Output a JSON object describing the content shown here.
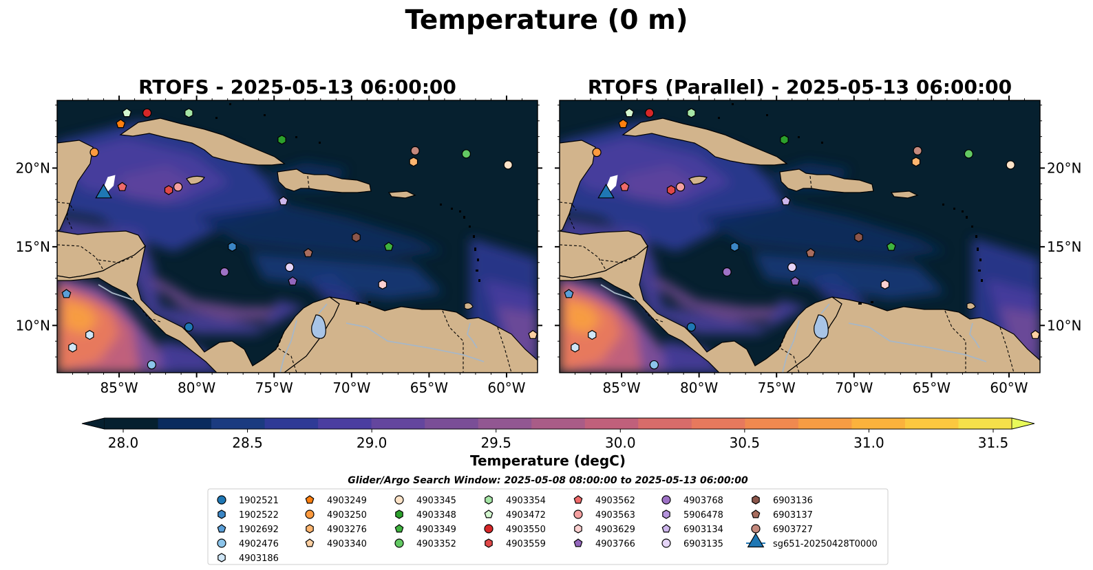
{
  "figure": {
    "title": "Temperature (0 m)",
    "panels": [
      {
        "title": "RTOFS - 2025-05-13 06:00:00"
      },
      {
        "title": "RTOFS (Parallel) - 2025-05-13 06:00:00"
      }
    ],
    "lon_ticks": [
      "85°W",
      "80°W",
      "75°W",
      "70°W",
      "65°W",
      "60°W"
    ],
    "lon_values": [
      -85,
      -80,
      -75,
      -70,
      -65,
      -60
    ],
    "lat_ticks": [
      "20°N",
      "15°N",
      "10°N"
    ],
    "lat_values": [
      20,
      15,
      10
    ],
    "extent": {
      "lon": [
        -89,
        -58
      ],
      "lat": [
        7,
        24.3
      ]
    },
    "colors": {
      "ocean_cold": "#06202f",
      "land": "#d2b48c",
      "lake": "#a8c4e6",
      "river": "#a7b7c7"
    }
  },
  "colorbar": {
    "label": "Temperature (degC)",
    "ticks": [
      "28.0",
      "28.5",
      "29.0",
      "29.5",
      "30.0",
      "30.5",
      "31.0",
      "31.5"
    ],
    "tick_values": [
      28.0,
      28.5,
      29.0,
      29.5,
      30.0,
      30.5,
      31.0,
      31.5
    ],
    "min": 28.0,
    "max": 31.5,
    "extend": "both",
    "colors": [
      "#06202f",
      "#0a2b5e",
      "#1b3b80",
      "#2f3a96",
      "#4b3ea0",
      "#64469e",
      "#7a4e97",
      "#925792",
      "#a95c87",
      "#c0607b",
      "#d76c6a",
      "#e7795d",
      "#f0894f",
      "#f79c43",
      "#fbb23c",
      "#fcc83f",
      "#f5e04a"
    ],
    "over_color": "#e8fa5a",
    "under_color": "#06202f"
  },
  "search_window": "Glider/Argo Search Window: 2025-05-08 08:00:00 to 2025-05-13 06:00:00",
  "legend": [
    {
      "label": "1902521",
      "marker": "circle",
      "color": "#1f77b4"
    },
    {
      "label": "1902522",
      "marker": "hexagon",
      "color": "#3b86c5"
    },
    {
      "label": "1902692",
      "marker": "pentagon",
      "color": "#5b9fd8"
    },
    {
      "label": "4902476",
      "marker": "circle",
      "color": "#8cc4ea"
    },
    {
      "label": "4903186",
      "marker": "hexagon",
      "color": "#cfe6f6"
    },
    {
      "label": "4903249",
      "marker": "pentagon",
      "color": "#ff7f0e"
    },
    {
      "label": "4903250",
      "marker": "circle",
      "color": "#fd9a3e"
    },
    {
      "label": "4903276",
      "marker": "hexagon",
      "color": "#fdb56f"
    },
    {
      "label": "4903340",
      "marker": "pentagon",
      "color": "#fdd0a2"
    },
    {
      "label": "4903345",
      "marker": "circle",
      "color": "#fde3c8"
    },
    {
      "label": "4903348",
      "marker": "hexagon",
      "color": "#2ca02c"
    },
    {
      "label": "4903349",
      "marker": "pentagon",
      "color": "#3fb33f"
    },
    {
      "label": "4903352",
      "marker": "circle",
      "color": "#63c963"
    },
    {
      "label": "4903354",
      "marker": "hexagon",
      "color": "#a6e6a6"
    },
    {
      "label": "4903472",
      "marker": "pentagon",
      "color": "#d4f7d0"
    },
    {
      "label": "4903550",
      "marker": "circle",
      "color": "#d62728"
    },
    {
      "label": "4903559",
      "marker": "hexagon",
      "color": "#e04848"
    },
    {
      "label": "4903562",
      "marker": "pentagon",
      "color": "#ef6a6a"
    },
    {
      "label": "4903563",
      "marker": "circle",
      "color": "#f4a0a0"
    },
    {
      "label": "4903629",
      "marker": "hexagon",
      "color": "#fbd0d0"
    },
    {
      "label": "4903766",
      "marker": "pentagon",
      "color": "#9467bd"
    },
    {
      "label": "4903768",
      "marker": "circle",
      "color": "#9e72c6"
    },
    {
      "label": "5906478",
      "marker": "hexagon",
      "color": "#b594dc"
    },
    {
      "label": "6903134",
      "marker": "pentagon",
      "color": "#cdb6ec"
    },
    {
      "label": "6903135",
      "marker": "circle",
      "color": "#e5d4f7"
    },
    {
      "label": "6903136",
      "marker": "hexagon",
      "color": "#8c564b"
    },
    {
      "label": "6903137",
      "marker": "pentagon",
      "color": "#a86d5e"
    },
    {
      "label": "6903727",
      "marker": "circle",
      "color": "#c4897d"
    },
    {
      "label": "sg651-20250428T0000",
      "marker": "triangle",
      "color": "#1f77b4"
    }
  ],
  "observations": [
    {
      "id": "1902521",
      "lon": -80.5,
      "lat": 9.9
    },
    {
      "id": "1902522",
      "lon": -77.7,
      "lat": 15.0
    },
    {
      "id": "1902692",
      "lon": -88.4,
      "lat": 12.0
    },
    {
      "id": "4902476",
      "lon": -82.9,
      "lat": 7.5
    },
    {
      "id": "4903186",
      "lon": -86.9,
      "lat": 9.4
    },
    {
      "id": "4903186",
      "lon": -88.0,
      "lat": 8.6
    },
    {
      "id": "4903249",
      "lon": -84.9,
      "lat": 22.8
    },
    {
      "id": "4903250",
      "lon": -86.6,
      "lat": 21.0
    },
    {
      "id": "4903276",
      "lon": -66.0,
      "lat": 20.4
    },
    {
      "id": "4903340",
      "lon": -58.3,
      "lat": 9.4
    },
    {
      "id": "4903345",
      "lon": -59.9,
      "lat": 20.2
    },
    {
      "id": "4903348",
      "lon": -74.5,
      "lat": 21.8
    },
    {
      "id": "4903349",
      "lon": -67.6,
      "lat": 15.0
    },
    {
      "id": "4903352",
      "lon": -62.6,
      "lat": 20.9
    },
    {
      "id": "4903354",
      "lon": -80.5,
      "lat": 23.5
    },
    {
      "id": "4903472",
      "lon": -84.5,
      "lat": 23.5
    },
    {
      "id": "4903550",
      "lon": -83.2,
      "lat": 23.5
    },
    {
      "id": "4903559",
      "lon": -81.8,
      "lat": 18.6
    },
    {
      "id": "4903562",
      "lon": -84.8,
      "lat": 18.8
    },
    {
      "id": "4903563",
      "lon": -81.2,
      "lat": 18.8
    },
    {
      "id": "4903629",
      "lon": -68.0,
      "lat": 12.6
    },
    {
      "id": "4903766",
      "lon": -73.8,
      "lat": 12.8
    },
    {
      "id": "4903768",
      "lon": -78.2,
      "lat": 13.4
    },
    {
      "id": "6903134",
      "lon": -74.4,
      "lat": 17.9
    },
    {
      "id": "6903135",
      "lon": -74.0,
      "lat": 13.7
    },
    {
      "id": "6903136",
      "lon": -69.7,
      "lat": 15.6
    },
    {
      "id": "6903137",
      "lon": -72.8,
      "lat": 14.6
    },
    {
      "id": "6903727",
      "lon": -65.9,
      "lat": 21.1
    },
    {
      "id": "sg651-20250428T0000",
      "lon": -86.0,
      "lat": 18.3
    }
  ],
  "glider_track": [
    [
      -86.0,
      18.3
    ],
    [
      -85.9,
      18.9
    ],
    [
      -85.7,
      19.4
    ],
    [
      -85.3,
      19.5
    ],
    [
      -85.4,
      18.9
    ]
  ]
}
